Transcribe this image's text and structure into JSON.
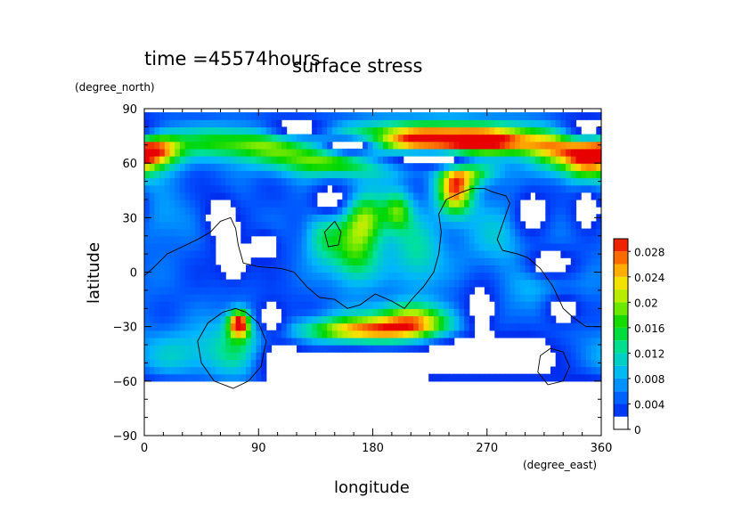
{
  "chart_data": {
    "type": "heatmap",
    "time_label": "time =45574hours",
    "title": "surface stress",
    "xlabel": "longitude",
    "ylabel": "latitude",
    "xunit": "(degree_east)",
    "yunit": "(degree_north)",
    "xlim": [
      0,
      360
    ],
    "ylim": [
      -90,
      90
    ],
    "xticks": [
      0,
      90,
      180,
      270,
      360
    ],
    "yticks": [
      -90,
      -60,
      -30,
      0,
      30,
      60,
      90
    ],
    "colorbar": {
      "min": 0,
      "max": 0.03,
      "labels": [
        "0.028",
        "0.024",
        "0.02",
        "0.016",
        "0.012",
        "0.008",
        "0.004",
        "0"
      ],
      "label_values": [
        0.028,
        0.024,
        0.02,
        0.016,
        0.012,
        0.008,
        0.004,
        0
      ]
    },
    "field": {
      "background": 0.0045,
      "white_below": 0.0022,
      "features": [
        {
          "lon": 10,
          "lat": 68,
          "w": 14,
          "h": 7,
          "a": 0.022
        },
        {
          "lon": 350,
          "lat": 62,
          "w": 12,
          "h": 10,
          "a": 0.016
        },
        {
          "lon": 60,
          "lat": 72,
          "w": 28,
          "h": 6,
          "a": 0.009
        },
        {
          "lon": 95,
          "lat": 70,
          "w": 30,
          "h": 6,
          "a": 0.008
        },
        {
          "lon": 155,
          "lat": 62,
          "w": 38,
          "h": 6,
          "a": 0.018
        },
        {
          "lon": 215,
          "lat": 74,
          "w": 45,
          "h": 6,
          "a": 0.02
        },
        {
          "lon": 275,
          "lat": 72,
          "w": 40,
          "h": 6,
          "a": 0.02
        },
        {
          "lon": 330,
          "lat": 66,
          "w": 20,
          "h": 8,
          "a": 0.015
        },
        {
          "lon": 245,
          "lat": 46,
          "w": 10,
          "h": 10,
          "a": 0.022
        },
        {
          "lon": 260,
          "lat": 58,
          "w": 14,
          "h": 6,
          "a": 0.014
        },
        {
          "lon": 175,
          "lat": 30,
          "w": 12,
          "h": 10,
          "a": 0.014
        },
        {
          "lon": 200,
          "lat": 34,
          "w": 8,
          "h": 8,
          "a": 0.012
        },
        {
          "lon": 165,
          "lat": 10,
          "w": 14,
          "h": 12,
          "a": 0.012
        },
        {
          "lon": 140,
          "lat": 20,
          "w": 10,
          "h": 10,
          "a": 0.008
        },
        {
          "lon": 215,
          "lat": 10,
          "w": 14,
          "h": 14,
          "a": 0.008
        },
        {
          "lon": 180,
          "lat": -32,
          "w": 40,
          "h": 5,
          "a": 0.022
        },
        {
          "lon": 210,
          "lat": -25,
          "w": 25,
          "h": 6,
          "a": 0.014
        },
        {
          "lon": 75,
          "lat": -28,
          "w": 6,
          "h": 5,
          "a": 0.026
        },
        {
          "lon": 75,
          "lat": -40,
          "w": 16,
          "h": 12,
          "a": 0.008
        },
        {
          "lon": 30,
          "lat": -45,
          "w": 25,
          "h": 10,
          "a": 0.006
        },
        {
          "lon": 320,
          "lat": -15,
          "w": 22,
          "h": 14,
          "a": 0.006
        },
        {
          "lon": 280,
          "lat": 20,
          "w": 20,
          "h": 14,
          "a": 0.005
        },
        {
          "lon": 10,
          "lat": 30,
          "w": 18,
          "h": 10,
          "a": 0.004
        }
      ],
      "holes": [
        {
          "lon": 160,
          "lat": 70,
          "w": 18,
          "h": 4
        },
        {
          "lon": 225,
          "lat": 62,
          "w": 40,
          "h": 4
        },
        {
          "lon": 350,
          "lat": 80,
          "w": 18,
          "h": 6
        },
        {
          "lon": 120,
          "lat": 80,
          "w": 18,
          "h": 4
        },
        {
          "lon": 305,
          "lat": 33,
          "w": 10,
          "h": 10
        },
        {
          "lon": 350,
          "lat": 35,
          "w": 10,
          "h": 10
        },
        {
          "lon": 320,
          "lat": 5,
          "w": 16,
          "h": 6
        },
        {
          "lon": 265,
          "lat": -20,
          "w": 10,
          "h": 10
        },
        {
          "lon": 330,
          "lat": -20,
          "w": 14,
          "h": 8
        },
        {
          "lon": 300,
          "lat": -45,
          "w": 20,
          "h": 10
        },
        {
          "lon": 250,
          "lat": -45,
          "w": 20,
          "h": 8
        },
        {
          "lon": 175,
          "lat": -52,
          "w": 40,
          "h": 8
        },
        {
          "lon": 110,
          "lat": -50,
          "w": 14,
          "h": 8
        },
        {
          "lon": 15,
          "lat": -70,
          "w": 30,
          "h": 8
        },
        {
          "lon": 130,
          "lat": -75,
          "w": 40,
          "h": 8
        },
        {
          "lon": 260,
          "lat": -78,
          "w": 60,
          "h": 6
        },
        {
          "lon": 345,
          "lat": -70,
          "w": 14,
          "h": 8
        },
        {
          "lon": 60,
          "lat": 30,
          "w": 10,
          "h": 10
        },
        {
          "lon": 70,
          "lat": 5,
          "w": 10,
          "h": 8
        },
        {
          "lon": 95,
          "lat": 15,
          "w": 8,
          "h": 6
        },
        {
          "lon": 100,
          "lat": -25,
          "w": 10,
          "h": 8
        },
        {
          "lon": 145,
          "lat": 40,
          "w": 10,
          "h": 6
        }
      ]
    },
    "coastlines": [
      [
        [
          0,
          -2
        ],
        [
          8,
          3
        ],
        [
          18,
          10
        ],
        [
          30,
          14
        ],
        [
          42,
          18
        ],
        [
          52,
          22
        ],
        [
          60,
          28
        ],
        [
          68,
          30
        ],
        [
          72,
          24
        ],
        [
          74,
          15
        ],
        [
          78,
          5
        ],
        [
          90,
          3
        ],
        [
          108,
          2
        ],
        [
          118,
          0
        ],
        [
          128,
          -8
        ],
        [
          138,
          -14
        ],
        [
          150,
          -15
        ],
        [
          160,
          -20
        ],
        [
          170,
          -18
        ],
        [
          182,
          -12
        ],
        [
          195,
          -16
        ],
        [
          205,
          -20
        ],
        [
          212,
          -14
        ],
        [
          220,
          -8
        ],
        [
          228,
          0
        ],
        [
          232,
          10
        ],
        [
          234,
          22
        ],
        [
          232,
          32
        ],
        [
          238,
          40
        ],
        [
          250,
          44
        ],
        [
          258,
          46
        ],
        [
          268,
          46
        ],
        [
          275,
          44
        ],
        [
          285,
          42
        ],
        [
          288,
          38
        ],
        [
          283,
          28
        ],
        [
          278,
          18
        ],
        [
          282,
          12
        ],
        [
          294,
          10
        ],
        [
          302,
          8
        ],
        [
          312,
          2
        ],
        [
          322,
          -8
        ],
        [
          330,
          -20
        ],
        [
          338,
          -25
        ],
        [
          348,
          -30
        ],
        [
          360,
          -30
        ]
      ],
      [
        [
          72,
          -20
        ],
        [
          80,
          -22
        ],
        [
          90,
          -28
        ],
        [
          96,
          -38
        ],
        [
          92,
          -52
        ],
        [
          82,
          -60
        ],
        [
          70,
          -64
        ],
        [
          55,
          -60
        ],
        [
          45,
          -50
        ],
        [
          42,
          -38
        ],
        [
          50,
          -28
        ],
        [
          62,
          -22
        ],
        [
          72,
          -20
        ]
      ],
      [
        [
          150,
          28
        ],
        [
          155,
          22
        ],
        [
          153,
          15
        ],
        [
          145,
          14
        ],
        [
          142,
          22
        ],
        [
          150,
          28
        ]
      ],
      [
        [
          320,
          -42
        ],
        [
          330,
          -44
        ],
        [
          335,
          -52
        ],
        [
          330,
          -60
        ],
        [
          318,
          -62
        ],
        [
          310,
          -55
        ],
        [
          312,
          -46
        ],
        [
          320,
          -42
        ]
      ]
    ]
  }
}
